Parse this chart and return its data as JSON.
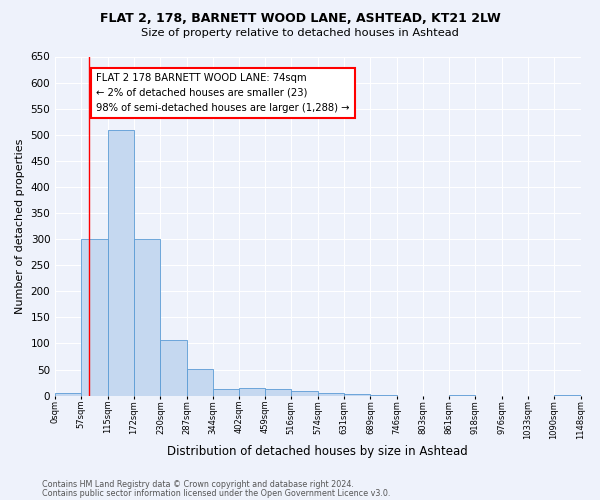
{
  "title1": "FLAT 2, 178, BARNETT WOOD LANE, ASHTEAD, KT21 2LW",
  "title2": "Size of property relative to detached houses in Ashtead",
  "xlabel": "Distribution of detached houses by size in Ashtead",
  "ylabel": "Number of detached properties",
  "bar_color": "#c5d8f0",
  "bar_edge_color": "#5b9bd5",
  "bin_edges": [
    0,
    57,
    115,
    172,
    230,
    287,
    344,
    402,
    459,
    516,
    574,
    631,
    689,
    746,
    803,
    861,
    918,
    976,
    1033,
    1090,
    1148
  ],
  "bar_heights": [
    5,
    300,
    510,
    300,
    107,
    52,
    12,
    15,
    13,
    8,
    5,
    3,
    1,
    0,
    0,
    1,
    0,
    0,
    0,
    2
  ],
  "property_size": 74,
  "red_line_x": 74,
  "annotation_text": "FLAT 2 178 BARNETT WOOD LANE: 74sqm\n← 2% of detached houses are smaller (23)\n98% of semi-detached houses are larger (1,288) →",
  "annotation_box_color": "white",
  "annotation_box_edge": "red",
  "footnote1": "Contains HM Land Registry data © Crown copyright and database right 2024.",
  "footnote2": "Contains public sector information licensed under the Open Government Licence v3.0.",
  "ylim": [
    0,
    650
  ],
  "yticks": [
    0,
    50,
    100,
    150,
    200,
    250,
    300,
    350,
    400,
    450,
    500,
    550,
    600,
    650
  ],
  "background_color": "#eef2fb",
  "grid_color": "white"
}
